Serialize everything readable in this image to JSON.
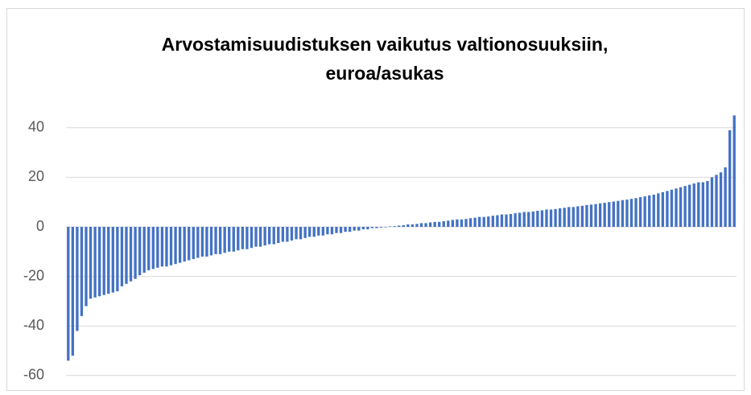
{
  "chart_data": {
    "type": "bar",
    "title": [
      "Arvostamisuudistuksen vaikutus valtionosuuksiin,",
      "euroa/asukas"
    ],
    "values": [
      -54,
      -52,
      -42,
      -36,
      -32,
      -29,
      -28.5,
      -28,
      -27.5,
      -27,
      -26.5,
      -26,
      -24,
      -23,
      -22,
      -21,
      -19.5,
      -18.5,
      -17.5,
      -17,
      -16.5,
      -16,
      -16,
      -15.5,
      -15,
      -14.5,
      -14,
      -13.5,
      -13,
      -12.5,
      -12,
      -12,
      -11.5,
      -11,
      -11,
      -10.5,
      -10,
      -10,
      -9.5,
      -9,
      -9,
      -8.5,
      -8,
      -8,
      -7.5,
      -7,
      -7,
      -6.5,
      -6,
      -6,
      -5.5,
      -5,
      -5,
      -4.5,
      -4,
      -4,
      -3.5,
      -3.5,
      -3,
      -3,
      -2.5,
      -2.5,
      -2,
      -2,
      -1.5,
      -1.5,
      -1,
      -1,
      -0.5,
      -0.5,
      -0.3,
      -0.2,
      0.2,
      0.3,
      0.5,
      0.7,
      1,
      1,
      1.2,
      1.5,
      1.5,
      1.8,
      2,
      2,
      2.3,
      2.5,
      2.8,
      3,
      3,
      3.2,
      3.5,
      3.7,
      4,
      4,
      4.2,
      4.5,
      4.7,
      5,
      5,
      5.2,
      5.5,
      5.7,
      6,
      6,
      6.2,
      6.5,
      6.7,
      7,
      7,
      7.2,
      7.5,
      7.7,
      8,
      8,
      8.3,
      8.5,
      8.8,
      9,
      9.2,
      9.5,
      9.7,
      10,
      10.2,
      10.5,
      10.8,
      11,
      11.3,
      11.6,
      12,
      12.3,
      12.7,
      13,
      13.5,
      14,
      14.5,
      15,
      15.5,
      16,
      16.5,
      17,
      17.5,
      18,
      18,
      18.5,
      20,
      21,
      22,
      24,
      39,
      45
    ],
    "color": "#4472c4",
    "ylim": [
      -60,
      45
    ],
    "yticks": [
      -60,
      -40,
      -20,
      0,
      20,
      40
    ],
    "grid": true
  }
}
